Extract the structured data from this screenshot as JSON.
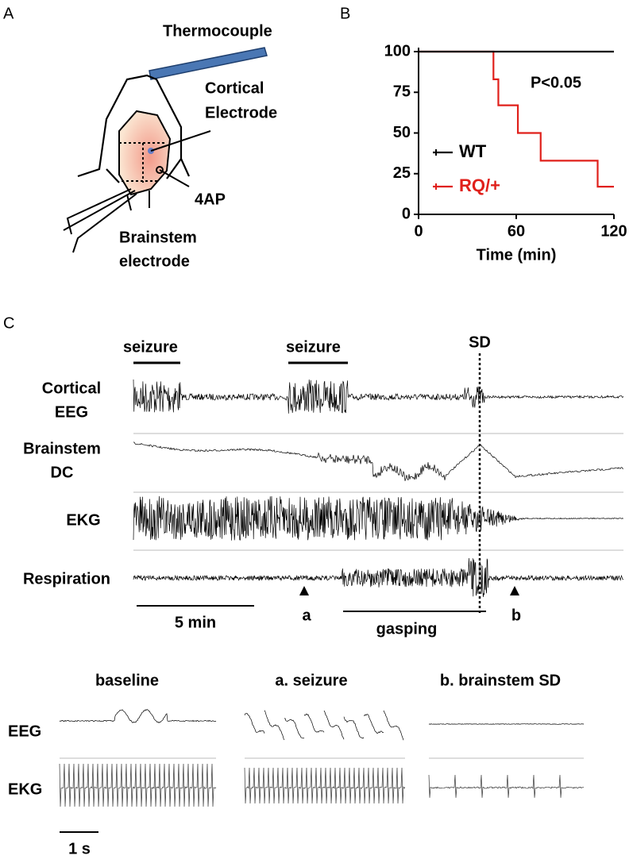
{
  "panel_a": {
    "letter": "A",
    "thermocouple": "Thermocouple",
    "cortical_electrode": [
      "Cortical",
      "Electrode"
    ],
    "drug": "4AP",
    "brainstem_electrode": [
      "Brainstem",
      "electrode"
    ]
  },
  "chart_data": {
    "type": "step",
    "letter": "B",
    "xlabel": "Time (min)",
    "annotation": "P<0.05",
    "xlim": [
      0,
      120
    ],
    "xticks": [
      0,
      60,
      120
    ],
    "ylim": [
      0,
      100
    ],
    "yticks": [
      0,
      25,
      50,
      75,
      100
    ],
    "legend": "left",
    "series": [
      {
        "name": "WT",
        "color": "#000000",
        "x": [
          0,
          120
        ],
        "values": [
          100,
          100
        ]
      },
      {
        "name": "RQ/+",
        "color": "#e0201b",
        "x": [
          0,
          46,
          49,
          61,
          75,
          110,
          120
        ],
        "values": [
          100,
          83,
          67,
          50,
          33,
          17,
          17
        ]
      }
    ]
  },
  "panel_c": {
    "letter": "C",
    "seizure_labels": [
      "seizure",
      "seizure"
    ],
    "sd": "SD",
    "traces": [
      [
        "Cortical",
        "EEG"
      ],
      [
        "Brainstem",
        "DC"
      ],
      [
        "EKG"
      ],
      [
        "Respiration"
      ]
    ],
    "scale": "5 min",
    "marker_a": "a",
    "gasping": "gasping",
    "marker_b": "b",
    "insets": [
      "baseline",
      "a. seizure",
      "b. brainstem SD"
    ],
    "inset_rows": [
      "EEG",
      "EKG"
    ],
    "inset_scale": "1 s"
  }
}
